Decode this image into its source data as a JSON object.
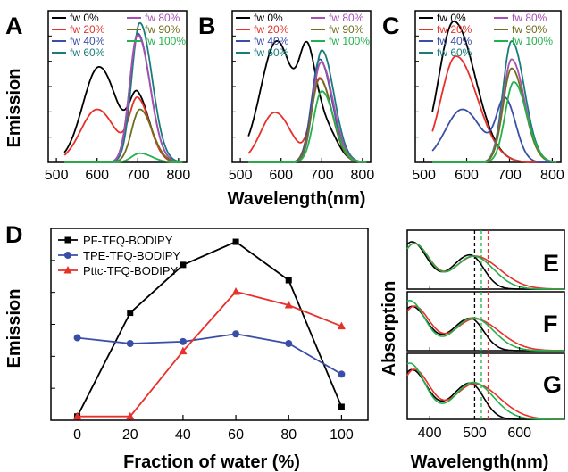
{
  "colors": {
    "fw 0%": "#000000",
    "fw 20%": "#e8302a",
    "fw 40%": "#3a4ea8",
    "fw 60%": "#197c7c",
    "fw 80%": "#a84fb0",
    "fw 90%": "#706d1b",
    "fw 100%": "#22b14c",
    "PF": "#000000",
    "TPE": "#3a4ea8",
    "Pttc": "#e8302a",
    "abs_black": "#000000",
    "abs_green": "#22b14c",
    "abs_red": "#e8302a"
  },
  "chart_data": [
    {
      "panel": "A",
      "type": "line",
      "ylabel": "Emission",
      "xlim": [
        480,
        820
      ],
      "xticks": [
        "500",
        "600",
        "700",
        "800"
      ],
      "legend": [
        "fw 0%",
        "fw 20%",
        "fw 40%",
        "fw 60%",
        "fw 80%",
        "fw 90%",
        "fw 100%"
      ],
      "series": [
        {
          "name": "fw 0%",
          "peaks": [
            [
              605,
              0.63
            ],
            [
              700,
              0.4
            ]
          ],
          "widths": [
            [
              40,
              45
            ],
            [
              20,
              30
            ]
          ]
        },
        {
          "name": "fw 20%",
          "peaks": [
            [
              600,
              0.35
            ],
            [
              700,
              0.4
            ]
          ],
          "widths": [
            [
              40,
              45
            ],
            [
              20,
              30
            ]
          ]
        },
        {
          "name": "fw 40%",
          "peaks": [
            [
              700,
              0.85
            ]
          ],
          "widths": [
            [
              20,
              30
            ]
          ]
        },
        {
          "name": "fw 60%",
          "peaks": [
            [
              705,
              0.92
            ]
          ],
          "widths": [
            [
              20,
              30
            ]
          ]
        },
        {
          "name": "fw 80%",
          "peaks": [
            [
              700,
              0.84
            ]
          ],
          "widths": [
            [
              20,
              30
            ]
          ]
        },
        {
          "name": "fw 90%",
          "peaks": [
            [
              705,
              0.35
            ]
          ],
          "widths": [
            [
              20,
              30
            ]
          ]
        },
        {
          "name": "fw 100%",
          "peaks": [
            [
              705,
              0.06
            ]
          ],
          "widths": [
            [
              20,
              30
            ]
          ]
        }
      ]
    },
    {
      "panel": "B",
      "type": "line",
      "xlabel": "Wavelength(nm)",
      "xlim": [
        480,
        820
      ],
      "xticks": [
        "500",
        "600",
        "700",
        "800"
      ],
      "legend": [
        "fw 0%",
        "fw 20%",
        "fw 40%",
        "fw 60%",
        "fw 80%",
        "fw 90%",
        "fw 100%"
      ],
      "series": [
        {
          "name": "fw 0%",
          "peaks": [
            [
              590,
              0.8
            ],
            [
              665,
              0.62
            ],
            [
              705,
              0.25
            ]
          ],
          "widths": [
            [
              40,
              40
            ],
            [
              20,
              20
            ],
            [
              20,
              30
            ]
          ]
        },
        {
          "name": "fw 20%",
          "peaks": [
            [
              585,
              0.33
            ],
            [
              695,
              0.55
            ]
          ],
          "widths": [
            [
              35,
              40
            ],
            [
              20,
              30
            ]
          ]
        },
        {
          "name": "fw 40%",
          "peaks": [
            [
              695,
              0.68
            ]
          ],
          "widths": [
            [
              20,
              30
            ]
          ]
        },
        {
          "name": "fw 60%",
          "peaks": [
            [
              700,
              0.74
            ]
          ],
          "widths": [
            [
              20,
              30
            ]
          ]
        },
        {
          "name": "fw 80%",
          "peaks": [
            [
              698,
              0.66
            ]
          ],
          "widths": [
            [
              20,
              30
            ]
          ]
        },
        {
          "name": "fw 90%",
          "peaks": [
            [
              695,
              0.55
            ]
          ],
          "widths": [
            [
              20,
              30
            ]
          ]
        },
        {
          "name": "fw 100%",
          "peaks": [
            [
              700,
              0.47
            ]
          ],
          "widths": [
            [
              20,
              30
            ]
          ]
        }
      ]
    },
    {
      "panel": "C",
      "type": "line",
      "xlim": [
        480,
        820
      ],
      "xticks": [
        "500",
        "600",
        "700",
        "800"
      ],
      "legend": [
        "fw 0%",
        "fw 20%",
        "fw 40%",
        "fw 60%",
        "fw 80%",
        "fw 90%",
        "fw 100%"
      ],
      "series": [
        {
          "name": "fw 0%",
          "peaks": [
            [
              570,
              0.93
            ]
          ],
          "widths": [
            [
              35,
              50
            ]
          ]
        },
        {
          "name": "fw 20%",
          "peaks": [
            [
              575,
              0.7
            ]
          ],
          "widths": [
            [
              35,
              50
            ]
          ]
        },
        {
          "name": "fw 40%",
          "peaks": [
            [
              590,
              0.35
            ],
            [
              690,
              0.4
            ]
          ],
          "widths": [
            [
              40,
              45
            ],
            [
              20,
              25
            ]
          ]
        },
        {
          "name": "fw 60%",
          "peaks": [
            [
              705,
              0.8
            ]
          ],
          "widths": [
            [
              20,
              30
            ]
          ]
        },
        {
          "name": "fw 80%",
          "peaks": [
            [
              705,
              0.68
            ]
          ],
          "widths": [
            [
              20,
              30
            ]
          ]
        },
        {
          "name": "fw 90%",
          "peaks": [
            [
              705,
              0.62
            ]
          ],
          "widths": [
            [
              20,
              30
            ]
          ]
        },
        {
          "name": "fw 100%",
          "peaks": [
            [
              710,
              0.53
            ]
          ],
          "widths": [
            [
              20,
              30
            ]
          ]
        }
      ]
    },
    {
      "panel": "D",
      "type": "line",
      "xlabel": "Fraction of water (%)",
      "ylabel": "Emission",
      "xlim": [
        -10,
        110
      ],
      "ylim": [
        0,
        1
      ],
      "xticks": [
        "0",
        "20",
        "40",
        "60",
        "80",
        "100"
      ],
      "x": [
        0,
        20,
        40,
        60,
        80,
        100
      ],
      "series": [
        {
          "name": "PF-TFQ-BODIPY",
          "marker": "square",
          "values": [
            0.02,
            0.56,
            0.81,
            0.93,
            0.73,
            0.07
          ]
        },
        {
          "name": "TPE-TFQ-BODIPY",
          "marker": "circle",
          "values": [
            0.43,
            0.4,
            0.41,
            0.45,
            0.4,
            0.24
          ]
        },
        {
          "name": "Pttc-TFQ-BODIPY",
          "marker": "triangle",
          "values": [
            0.02,
            0.02,
            0.36,
            0.67,
            0.6,
            0.49
          ]
        }
      ]
    },
    {
      "panel": "E",
      "type": "line",
      "xlim": [
        350,
        700
      ],
      "dashed_lines": [
        500,
        515,
        530
      ],
      "series": [
        {
          "name": "black",
          "peaks": [
            [
              360,
              0.8
            ],
            [
              490,
              0.58
            ]
          ],
          "widths": [
            [
              30,
              35
            ],
            [
              40,
              30
            ]
          ]
        },
        {
          "name": "red",
          "peaks": [
            [
              365,
              0.77
            ],
            [
              500,
              0.56
            ]
          ],
          "widths": [
            [
              30,
              35
            ],
            [
              45,
              55
            ]
          ]
        },
        {
          "name": "green",
          "peaks": [
            [
              365,
              0.77
            ],
            [
              497,
              0.56
            ]
          ],
          "widths": [
            [
              30,
              35
            ],
            [
              42,
              45
            ]
          ]
        }
      ]
    },
    {
      "panel": "F",
      "type": "line",
      "xlim": [
        350,
        700
      ],
      "dashed_lines": [
        500,
        515,
        530
      ],
      "series": [
        {
          "name": "black",
          "peaks": [
            [
              360,
              0.75
            ],
            [
              490,
              0.55
            ]
          ],
          "widths": [
            [
              30,
              35
            ],
            [
              40,
              30
            ]
          ]
        },
        {
          "name": "red",
          "peaks": [
            [
              365,
              0.75
            ],
            [
              500,
              0.54
            ]
          ],
          "widths": [
            [
              30,
              35
            ],
            [
              45,
              55
            ]
          ]
        },
        {
          "name": "green",
          "peaks": [
            [
              355,
              0.85
            ],
            [
              497,
              0.56
            ]
          ],
          "widths": [
            [
              30,
              35
            ],
            [
              42,
              45
            ]
          ]
        }
      ]
    },
    {
      "panel": "G",
      "type": "line",
      "xlabel": "Wavelength(nm)",
      "ylabel": "Absorption",
      "xlim": [
        350,
        700
      ],
      "xticks": [
        "400",
        "500",
        "600"
      ],
      "dashed_lines": [
        500,
        515,
        530
      ],
      "series": [
        {
          "name": "black",
          "peaks": [
            [
              360,
              0.75
            ],
            [
              490,
              0.55
            ]
          ],
          "widths": [
            [
              30,
              35
            ],
            [
              40,
              30
            ]
          ]
        },
        {
          "name": "red",
          "peaks": [
            [
              365,
              0.75
            ],
            [
              500,
              0.54
            ]
          ],
          "widths": [
            [
              30,
              35
            ],
            [
              45,
              55
            ]
          ]
        },
        {
          "name": "green",
          "peaks": [
            [
              355,
              0.85
            ],
            [
              497,
              0.56
            ]
          ],
          "widths": [
            [
              30,
              35
            ],
            [
              42,
              45
            ]
          ]
        }
      ]
    }
  ]
}
